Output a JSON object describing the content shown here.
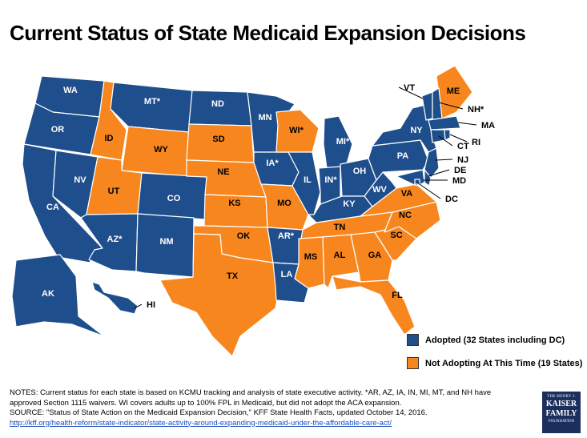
{
  "title": "Current Status of State Medicaid Expansion Decisions",
  "colors": {
    "adopted": "#1f4e8c",
    "not_adopting": "#f7861f",
    "border": "#ffffff"
  },
  "legend": {
    "adopted": "Adopted (32 States including DC)",
    "not_adopting": "Not Adopting At This Time (19 States)"
  },
  "states": {
    "WA": {
      "label": "WA",
      "status": "adopted"
    },
    "OR": {
      "label": "OR",
      "status": "adopted"
    },
    "CA": {
      "label": "CA",
      "status": "adopted"
    },
    "NV": {
      "label": "NV",
      "status": "adopted"
    },
    "ID": {
      "label": "ID",
      "status": "not_adopting"
    },
    "MT": {
      "label": "MT*",
      "status": "adopted"
    },
    "WY": {
      "label": "WY",
      "status": "not_adopting"
    },
    "UT": {
      "label": "UT",
      "status": "not_adopting"
    },
    "CO": {
      "label": "CO",
      "status": "adopted"
    },
    "AZ": {
      "label": "AZ*",
      "status": "adopted"
    },
    "NM": {
      "label": "NM",
      "status": "adopted"
    },
    "ND": {
      "label": "ND",
      "status": "adopted"
    },
    "SD": {
      "label": "SD",
      "status": "not_adopting"
    },
    "NE": {
      "label": "NE",
      "status": "not_adopting"
    },
    "KS": {
      "label": "KS",
      "status": "not_adopting"
    },
    "OK": {
      "label": "OK",
      "status": "not_adopting"
    },
    "TX": {
      "label": "TX",
      "status": "not_adopting"
    },
    "MN": {
      "label": "MN",
      "status": "adopted"
    },
    "IA": {
      "label": "IA*",
      "status": "adopted"
    },
    "MO": {
      "label": "MO",
      "status": "not_adopting"
    },
    "AR": {
      "label": "AR*",
      "status": "adopted"
    },
    "LA": {
      "label": "LA",
      "status": "adopted"
    },
    "WI": {
      "label": "WI*",
      "status": "not_adopting"
    },
    "IL": {
      "label": "IL",
      "status": "adopted"
    },
    "MI": {
      "label": "MI*",
      "status": "adopted"
    },
    "IN": {
      "label": "IN*",
      "status": "adopted"
    },
    "OH": {
      "label": "OH",
      "status": "adopted"
    },
    "KY": {
      "label": "KY",
      "status": "adopted"
    },
    "TN": {
      "label": "TN",
      "status": "not_adopting"
    },
    "MS": {
      "label": "MS",
      "status": "not_adopting"
    },
    "AL": {
      "label": "AL",
      "status": "not_adopting"
    },
    "GA": {
      "label": "GA",
      "status": "not_adopting"
    },
    "FL": {
      "label": "FL",
      "status": "not_adopting"
    },
    "SC": {
      "label": "SC",
      "status": "not_adopting"
    },
    "NC": {
      "label": "NC",
      "status": "not_adopting"
    },
    "VA": {
      "label": "VA",
      "status": "not_adopting"
    },
    "WV": {
      "label": "WV",
      "status": "adopted"
    },
    "PA": {
      "label": "PA",
      "status": "adopted"
    },
    "NY": {
      "label": "NY",
      "status": "adopted"
    },
    "ME": {
      "label": "ME",
      "status": "not_adopting"
    },
    "VT": {
      "label": "VT",
      "status": "adopted"
    },
    "NH": {
      "label": "NH*",
      "status": "adopted"
    },
    "MA": {
      "label": "MA",
      "status": "adopted"
    },
    "CT": {
      "label": "CT",
      "status": "adopted"
    },
    "RI": {
      "label": "RI",
      "status": "adopted"
    },
    "NJ": {
      "label": "NJ",
      "status": "adopted"
    },
    "DE": {
      "label": "DE",
      "status": "adopted"
    },
    "MD": {
      "label": "MD",
      "status": "adopted"
    },
    "DC": {
      "label": "DC",
      "status": "adopted"
    },
    "AK": {
      "label": "AK",
      "status": "adopted"
    },
    "HI": {
      "label": "HI",
      "status": "adopted"
    }
  },
  "notes": {
    "line1": "NOTES: Current status for each state is based on KCMU tracking and analysis of state executive activity. *AR, AZ, IA, IN, MI, MT, and NH have approved Section 1115 waivers. WI covers adults up to 100% FPL in Medicaid, but did not adopt the ACA expansion.",
    "line2": "SOURCE: \"Status of State Action on the Medicaid Expansion Decision,\" KFF State Health Facts, updated October 14, 2016.",
    "link": "http://kff.org/health-reform/state-indicator/state-activity-around-expanding-medicaid-under-the-affordable-care-act/"
  },
  "logo": {
    "line1": "THE HENRY J.",
    "line2a": "KAISER",
    "line2b": "FAMILY",
    "line3": "FOUNDATION"
  }
}
